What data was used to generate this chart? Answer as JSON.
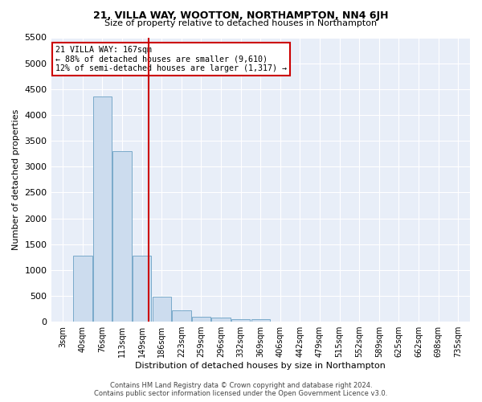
{
  "title": "21, VILLA WAY, WOOTTON, NORTHAMPTON, NN4 6JH",
  "subtitle": "Size of property relative to detached houses in Northampton",
  "xlabel": "Distribution of detached houses by size in Northampton",
  "ylabel": "Number of detached properties",
  "footer_line1": "Contains HM Land Registry data © Crown copyright and database right 2024.",
  "footer_line2": "Contains public sector information licensed under the Open Government Licence v3.0.",
  "property_size_idx": 4.35,
  "annotation_line1": "21 VILLA WAY: 167sqm",
  "annotation_line2": "← 88% of detached houses are smaller (9,610)",
  "annotation_line3": "12% of semi-detached houses are larger (1,317) →",
  "bar_color": "#ccdcee",
  "bar_edge_color": "#7aaaca",
  "vline_color": "#cc0000",
  "bg_color": "#e8eef8",
  "annotation_box_color": "#ffffff",
  "annotation_box_edge": "#cc0000",
  "categories": [
    "3sqm",
    "40sqm",
    "76sqm",
    "113sqm",
    "149sqm",
    "186sqm",
    "223sqm",
    "259sqm",
    "296sqm",
    "332sqm",
    "369sqm",
    "406sqm",
    "442sqm",
    "479sqm",
    "515sqm",
    "552sqm",
    "589sqm",
    "625sqm",
    "662sqm",
    "698sqm",
    "735sqm"
  ],
  "values": [
    0,
    1270,
    4350,
    3300,
    1270,
    490,
    220,
    90,
    80,
    55,
    50,
    0,
    0,
    0,
    0,
    0,
    0,
    0,
    0,
    0,
    0
  ],
  "ylim": [
    0,
    5500
  ],
  "yticks": [
    0,
    500,
    1000,
    1500,
    2000,
    2500,
    3000,
    3500,
    4000,
    4500,
    5000,
    5500
  ],
  "title_fontsize": 9,
  "subtitle_fontsize": 8,
  "ylabel_fontsize": 8,
  "xlabel_fontsize": 8,
  "ytick_fontsize": 8,
  "xtick_fontsize": 7
}
